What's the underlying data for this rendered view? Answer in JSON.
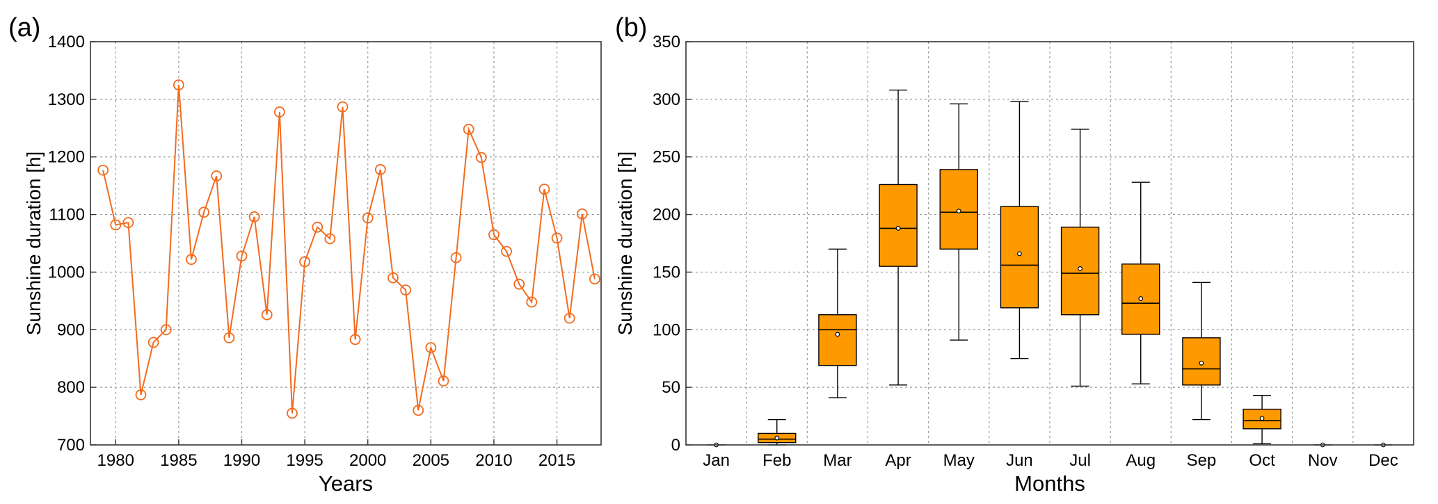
{
  "chart_data": [
    {
      "panel": "(a)",
      "type": "line",
      "xlabel": "Years",
      "ylabel": "Sunshine duration [h]",
      "xlim": [
        1978,
        2018.5
      ],
      "ylim": [
        700,
        1400
      ],
      "xticks": [
        1980,
        1985,
        1990,
        1995,
        2000,
        2005,
        2010,
        2015
      ],
      "yticks": [
        700,
        800,
        900,
        1000,
        1100,
        1200,
        1300,
        1400
      ],
      "grid": true,
      "color": "#F26B1D",
      "marker": "circle",
      "series": [
        {
          "x": [
            1979,
            1980,
            1981,
            1982,
            1983,
            1984,
            1985,
            1986,
            1987,
            1988,
            1989,
            1990,
            1991,
            1992,
            1993,
            1994,
            1995,
            1996,
            1997,
            1998,
            1999,
            2000,
            2001,
            2002,
            2003,
            2004,
            2005,
            2006,
            2007,
            2008,
            2009,
            2010,
            2011,
            2012,
            2013,
            2014,
            2015,
            2016,
            2017,
            2018
          ],
          "values": [
            1177,
            1082,
            1086,
            787,
            878,
            900,
            1325,
            1022,
            1104,
            1167,
            886,
            1028,
            1096,
            926,
            1278,
            755,
            1018,
            1078,
            1058,
            1287,
            883,
            1094,
            1178,
            990,
            969,
            760,
            869,
            811,
            1025,
            1248,
            1199,
            1065,
            1036,
            979,
            948,
            1144,
            1059,
            920,
            1101,
            988
          ]
        }
      ]
    },
    {
      "panel": "(b)",
      "type": "box",
      "xlabel": "Months",
      "ylabel": "Sunshine duration [h]",
      "ylim": [
        0,
        350
      ],
      "yticks": [
        0,
        50,
        100,
        150,
        200,
        250,
        300,
        350
      ],
      "grid": true,
      "box_color": "#FF9900",
      "categories": [
        "Jan",
        "Feb",
        "Mar",
        "Apr",
        "May",
        "Jun",
        "Jul",
        "Aug",
        "Sep",
        "Oct",
        "Nov",
        "Dec"
      ],
      "boxes": [
        {
          "min": 0,
          "q1": 0,
          "median": 0,
          "q3": 0,
          "max": 0,
          "mean": 0
        },
        {
          "min": 0,
          "q1": 2,
          "median": 5,
          "q3": 10,
          "max": 22,
          "mean": 6
        },
        {
          "min": 41,
          "q1": 69,
          "median": 100,
          "q3": 113,
          "max": 170,
          "mean": 96
        },
        {
          "min": 52,
          "q1": 155,
          "median": 188,
          "q3": 226,
          "max": 308,
          "mean": 188
        },
        {
          "min": 91,
          "q1": 170,
          "median": 202,
          "q3": 239,
          "max": 296,
          "mean": 203
        },
        {
          "min": 75,
          "q1": 119,
          "median": 156,
          "q3": 207,
          "max": 298,
          "mean": 166
        },
        {
          "min": 51,
          "q1": 113,
          "median": 149,
          "q3": 189,
          "max": 274,
          "mean": 153
        },
        {
          "min": 53,
          "q1": 96,
          "median": 123,
          "q3": 157,
          "max": 228,
          "mean": 127
        },
        {
          "min": 22,
          "q1": 52,
          "median": 66,
          "q3": 93,
          "max": 141,
          "mean": 71
        },
        {
          "min": 1,
          "q1": 14,
          "median": 21,
          "q3": 31,
          "max": 43,
          "mean": 23
        },
        {
          "min": 0,
          "q1": 0,
          "median": 0,
          "q3": 0,
          "max": 0,
          "mean": 0
        },
        {
          "min": 0,
          "q1": 0,
          "median": 0,
          "q3": 0,
          "max": 0,
          "mean": 0
        }
      ]
    }
  ]
}
